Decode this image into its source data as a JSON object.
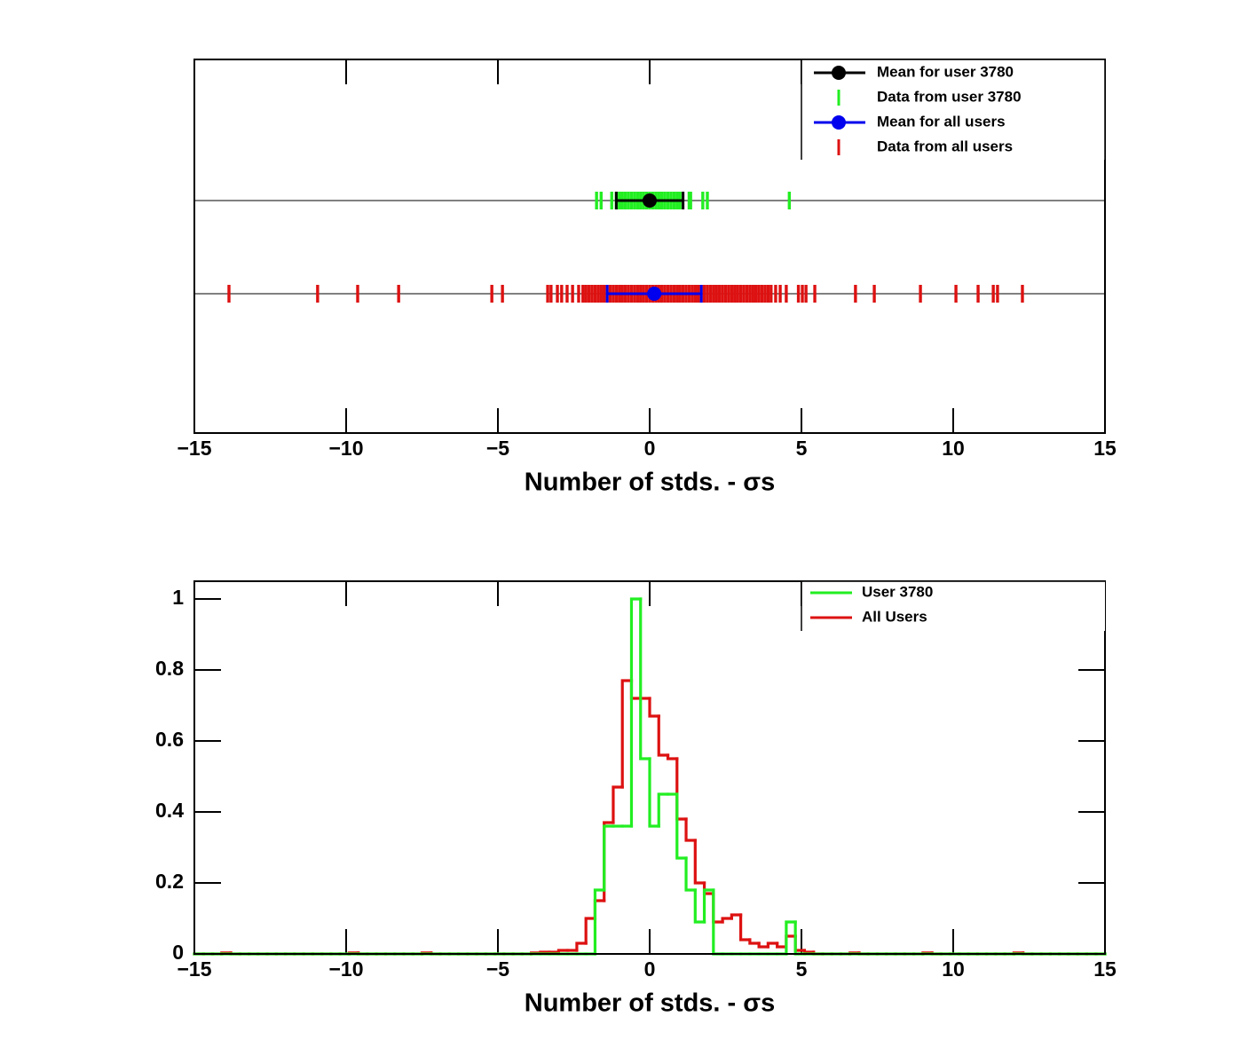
{
  "chart_data": [
    {
      "type": "strip",
      "xlabel": "Number of stds. -   σs",
      "xlim": [
        -15,
        15
      ],
      "xticks": [
        {
          "value": -15,
          "label": "−15"
        },
        {
          "value": -10,
          "label": "−10"
        },
        {
          "value": -5,
          "label": "−5"
        },
        0,
        5,
        10,
        15
      ],
      "legend": "top-right",
      "series": [
        {
          "name": "Data from user 3780",
          "color": "#22ee22",
          "mean_name": "Mean for user 3780",
          "mean_color": "#000000",
          "mean": 0,
          "error": 1.1,
          "values": [
            -1.75,
            -1.6,
            -1.25,
            -1.1,
            -1.0,
            -0.9,
            -0.8,
            -0.7,
            -0.6,
            -0.5,
            -0.4,
            -0.3,
            -0.2,
            -0.1,
            0.0,
            0.1,
            0.2,
            0.3,
            0.4,
            0.5,
            0.6,
            0.7,
            0.8,
            0.9,
            1.0,
            1.3,
            1.35,
            1.75,
            1.9,
            4.6
          ]
        },
        {
          "name": "Data from all users",
          "color": "#dd1111",
          "mean_name": "Mean for all users",
          "mean_color": "#0000ee",
          "mean": 0.15,
          "error": 1.55,
          "values": [
            -13.86,
            -10.94,
            -9.62,
            -8.27,
            -5.2,
            -4.85,
            -3.36,
            -3.25,
            -3.04,
            -2.9,
            -2.72,
            -2.54,
            -2.34,
            -2.2,
            -2.1,
            -2.0,
            -1.9,
            -1.8,
            -1.7,
            -1.6,
            -1.5,
            -1.4,
            -1.3,
            -1.2,
            -1.1,
            -1.0,
            -0.9,
            -0.8,
            -0.7,
            -0.6,
            -0.5,
            -0.4,
            -0.3,
            -0.2,
            -0.1,
            0.0,
            0.1,
            0.2,
            0.3,
            0.4,
            0.5,
            0.6,
            0.7,
            0.8,
            0.9,
            1.0,
            1.1,
            1.2,
            1.3,
            1.4,
            1.5,
            1.6,
            1.7,
            1.8,
            1.9,
            2.0,
            2.1,
            2.2,
            2.3,
            2.4,
            2.5,
            2.6,
            2.7,
            2.8,
            2.9,
            3.0,
            3.1,
            3.2,
            3.3,
            3.4,
            3.5,
            3.6,
            3.7,
            3.8,
            3.9,
            4.0,
            4.15,
            4.3,
            4.5,
            4.9,
            5.03,
            5.15,
            5.44,
            6.78,
            7.4,
            8.92,
            10.09,
            10.82,
            11.32,
            11.46,
            12.28
          ]
        }
      ]
    },
    {
      "type": "histogram",
      "xlabel": "Number of stds. -   σs",
      "xlim": [
        -15,
        15
      ],
      "xticks": [
        {
          "value": -15,
          "label": "−15"
        },
        {
          "value": -10,
          "label": "−10"
        },
        {
          "value": -5,
          "label": "−5"
        },
        0,
        5,
        10,
        15
      ],
      "ylim": [
        0,
        1.05
      ],
      "yticks": [
        0,
        0.2,
        0.4,
        0.6,
        0.8,
        1
      ],
      "legend": "top-right",
      "bins": [
        -15,
        -14.7,
        -14.4,
        -14.1,
        -13.8,
        -13.5,
        -13.2,
        -12.9,
        -12.6,
        -12.3,
        -12,
        -11.7,
        -11.4,
        -11.1,
        -10.8,
        -10.5,
        -10.2,
        -9.9,
        -9.6,
        -9.3,
        -9,
        -8.7,
        -8.4,
        -8.1,
        -7.8,
        -7.5,
        -7.2,
        -6.9,
        -6.6,
        -6.3,
        -6,
        -5.7,
        -5.4,
        -5.1,
        -4.8,
        -4.5,
        -4.2,
        -3.9,
        -3.6,
        -3.3,
        -3,
        -2.7,
        -2.4,
        -2.1,
        -1.8,
        -1.5,
        -1.2,
        -0.9,
        -0.6,
        -0.3,
        0,
        0.3,
        0.6,
        0.9,
        1.2,
        1.5,
        1.8,
        2.1,
        2.4,
        2.7,
        3,
        3.3,
        3.6,
        3.9,
        4.2,
        4.5,
        4.8,
        5.1,
        5.4,
        5.7,
        6,
        6.3,
        6.6,
        6.9,
        7.2,
        7.5,
        7.8,
        8.1,
        8.4,
        8.7,
        9,
        9.3,
        9.6,
        9.9,
        10.2,
        10.5,
        10.8,
        11.1,
        11.4,
        11.7,
        12,
        12.3,
        12.6,
        12.9,
        13.2,
        13.5,
        13.8,
        14.1,
        14.4,
        14.7,
        15
      ],
      "series": [
        {
          "name": "User 3780",
          "color": "#22ee22",
          "values": [
            0,
            0,
            0,
            0,
            0,
            0,
            0,
            0,
            0,
            0,
            0,
            0,
            0,
            0,
            0,
            0,
            0,
            0,
            0,
            0,
            0,
            0,
            0,
            0,
            0,
            0,
            0,
            0,
            0,
            0,
            0,
            0,
            0,
            0,
            0,
            0,
            0,
            0,
            0,
            0,
            0,
            0,
            0,
            0,
            0.18,
            0.36,
            0.36,
            0.36,
            1.0,
            0.55,
            0.36,
            0.45,
            0.45,
            0.27,
            0.18,
            0.09,
            0.18,
            0,
            0,
            0,
            0,
            0,
            0,
            0,
            0,
            0.09,
            0,
            0,
            0,
            0,
            0,
            0,
            0,
            0,
            0,
            0,
            0,
            0,
            0,
            0,
            0,
            0,
            0,
            0,
            0,
            0,
            0,
            0,
            0,
            0,
            0,
            0,
            0,
            0,
            0,
            0,
            0,
            0,
            0,
            0,
            0,
            0
          ]
        },
        {
          "name": "All Users",
          "color": "#dd1111",
          "values": [
            0,
            0,
            0,
            0.003,
            0,
            0,
            0,
            0,
            0,
            0,
            0,
            0,
            0,
            0,
            0,
            0,
            0,
            0.003,
            0,
            0,
            0,
            0,
            0,
            0,
            0,
            0.003,
            0,
            0,
            0,
            0,
            0,
            0,
            0,
            0,
            0,
            0,
            0,
            0.003,
            0.005,
            0.005,
            0.01,
            0.01,
            0.03,
            0.1,
            0.15,
            0.37,
            0.47,
            0.77,
            0.72,
            0.72,
            0.67,
            0.56,
            0.55,
            0.38,
            0.32,
            0.2,
            0.17,
            0.09,
            0.1,
            0.11,
            0.04,
            0.03,
            0.02,
            0.03,
            0.02,
            0.05,
            0.01,
            0.005,
            0,
            0,
            0,
            0,
            0.003,
            0,
            0,
            0,
            0,
            0,
            0,
            0,
            0.003,
            0,
            0,
            0,
            0,
            0,
            0,
            0,
            0,
            0,
            0.003,
            0,
            0,
            0,
            0,
            0,
            0,
            0,
            0,
            0
          ]
        }
      ]
    }
  ]
}
